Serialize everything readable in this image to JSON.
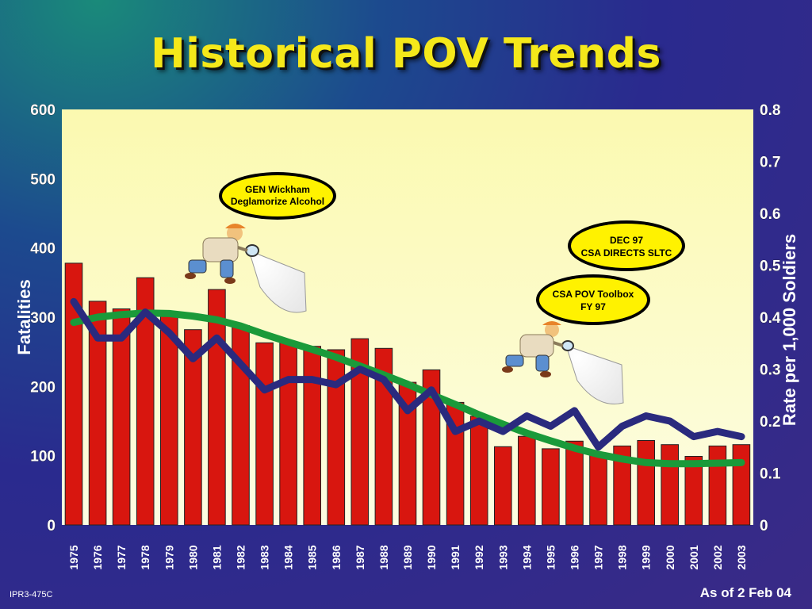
{
  "title": "Historical POV Trends",
  "footer": {
    "left": "IPR3-475C",
    "right": "As of 2 Feb 04"
  },
  "colors": {
    "bars": "#d8160f",
    "rate_line": "#2a2a7e",
    "trend_line": "#1a9a3a",
    "plot_bg_top": "#fbf9b0",
    "plot_bg_bottom": "#fdfde2",
    "bubble_fill": "#fff200"
  },
  "icons": [
    "detective-with-flashlight-icon",
    "detective-with-flashlight-icon"
  ],
  "chart_data": {
    "type": "bar",
    "categories": [
      "1975",
      "1976",
      "1977",
      "1978",
      "1979",
      "1980",
      "1981",
      "1982",
      "1983",
      "1984",
      "1985",
      "1986",
      "1987",
      "1988",
      "1989",
      "1990",
      "1991",
      "1992",
      "1993",
      "1994",
      "1995",
      "1996",
      "1997",
      "1998",
      "1999",
      "2000",
      "2001",
      "2002",
      "2003"
    ],
    "series": [
      {
        "type": "bar",
        "axis": "left",
        "values": [
          378,
          323,
          312,
          357,
          308,
          282,
          340,
          288,
          263,
          264,
          258,
          253,
          269,
          255,
          206,
          224,
          177,
          157,
          113,
          128,
          110,
          121,
          104,
          114,
          122,
          116,
          99,
          114,
          116
        ]
      },
      {
        "type": "line",
        "axis": "right",
        "values": [
          0.43,
          0.36,
          0.36,
          0.41,
          0.37,
          0.32,
          0.36,
          0.31,
          0.26,
          0.28,
          0.28,
          0.27,
          0.3,
          0.28,
          0.22,
          0.26,
          0.18,
          0.2,
          0.18,
          0.21,
          0.19,
          0.22,
          0.15,
          0.19,
          0.21,
          0.2,
          0.17,
          0.18,
          0.17
        ]
      },
      {
        "type": "line",
        "axis": "right",
        "values": [
          0.39,
          0.4,
          0.405,
          0.408,
          0.407,
          0.402,
          0.395,
          0.383,
          0.367,
          0.352,
          0.338,
          0.323,
          0.306,
          0.289,
          0.271,
          0.251,
          0.232,
          0.212,
          0.194,
          0.177,
          0.162,
          0.148,
          0.136,
          0.127,
          0.12,
          0.118,
          0.118,
          0.119,
          0.12
        ]
      }
    ],
    "y_left": {
      "label": "Fatalities",
      "min": 0,
      "max": 600,
      "ticks": [
        "0",
        "100",
        "200",
        "300",
        "400",
        "500",
        "600"
      ]
    },
    "y_right": {
      "label": "Rate per 1,000 Soldiers",
      "min": 0,
      "max": 0.8,
      "ticks": [
        "0",
        "0.1",
        "0.2",
        "0.3",
        "0.4",
        "0.5",
        "0.6",
        "0.7",
        "0.8"
      ]
    },
    "annotations": [
      {
        "lines": [
          "GEN Wickham",
          "Deglamorize Alcohol"
        ]
      },
      {
        "lines": [
          "DEC 97",
          "CSA DIRECTS SLTC"
        ]
      },
      {
        "lines": [
          "CSA POV Toolbox",
          "FY 97"
        ]
      }
    ],
    "grid": false,
    "legend": "none"
  }
}
